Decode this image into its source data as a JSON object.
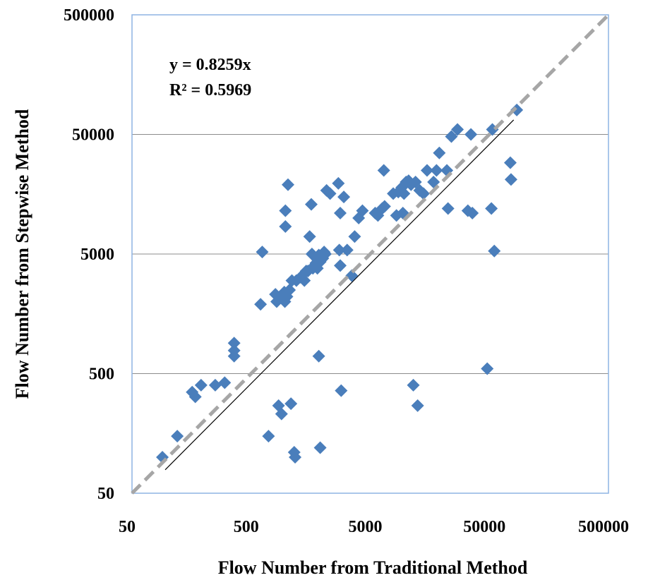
{
  "chart_data": {
    "type": "scatter",
    "xlabel": "Flow Number from Traditional Method",
    "ylabel": "Flow Number from Stepwise Method",
    "x_scale": "log",
    "y_scale": "log",
    "xlim": [
      50,
      500000
    ],
    "ylim": [
      50,
      500000
    ],
    "x_ticks": [
      "50",
      "500",
      "5000",
      "50000",
      "500000"
    ],
    "y_ticks": [
      "50",
      "500",
      "5000",
      "50000",
      "500000"
    ],
    "grid": "horizontal",
    "legend": "none",
    "annotations": [
      "y = 0.8259x",
      "R² = 0.5969"
    ],
    "colors": {
      "points": "#4a7ebb",
      "equality_line": "#a6a6a6",
      "trendline": "#000000",
      "grid": "#8c8c8c",
      "frame": "#8eb4e3"
    },
    "equality_line": {
      "x": [
        50,
        500000
      ],
      "y": [
        50,
        500000
      ],
      "style": "dashed"
    },
    "trendline": {
      "x": [
        95,
        80000
      ],
      "y": [
        78.5,
        66072
      ],
      "slope": 0.8259
    },
    "series": [
      {
        "marker": "diamond",
        "points": [
          [
            90,
            100
          ],
          [
            120,
            150
          ],
          [
            160,
            350
          ],
          [
            170,
            320
          ],
          [
            190,
            400
          ],
          [
            250,
            400
          ],
          [
            300,
            420
          ],
          [
            360,
            900
          ],
          [
            360,
            780
          ],
          [
            360,
            700
          ],
          [
            600,
            1900
          ],
          [
            620,
            5200
          ],
          [
            700,
            150
          ],
          [
            800,
            2300
          ],
          [
            820,
            2000
          ],
          [
            850,
            270
          ],
          [
            870,
            2200
          ],
          [
            900,
            230
          ],
          [
            950,
            2400
          ],
          [
            960,
            2000
          ],
          [
            970,
            8500
          ],
          [
            970,
            11500
          ],
          [
            1000,
            2200
          ],
          [
            1020,
            19000
          ],
          [
            1050,
            2500
          ],
          [
            1080,
            280
          ],
          [
            1100,
            3000
          ],
          [
            1150,
            110
          ],
          [
            1170,
            100
          ],
          [
            1200,
            3000
          ],
          [
            1300,
            3200
          ],
          [
            1400,
            3000
          ],
          [
            1450,
            3600
          ],
          [
            1500,
            3600
          ],
          [
            1550,
            7000
          ],
          [
            1600,
            13000
          ],
          [
            1620,
            5000
          ],
          [
            1650,
            3800
          ],
          [
            1700,
            4000
          ],
          [
            1750,
            4200
          ],
          [
            1800,
            4500
          ],
          [
            1800,
            3800
          ],
          [
            1850,
            700
          ],
          [
            1850,
            4900
          ],
          [
            1900,
            4300
          ],
          [
            1900,
            120
          ],
          [
            1950,
            4500
          ],
          [
            2000,
            4600
          ],
          [
            2050,
            5200
          ],
          [
            2100,
            5000
          ],
          [
            2150,
            17000
          ],
          [
            2300,
            16000
          ],
          [
            2700,
            19500
          ],
          [
            2750,
            5400
          ],
          [
            2800,
            11000
          ],
          [
            2800,
            4000
          ],
          [
            2850,
            360
          ],
          [
            3000,
            15000
          ],
          [
            3200,
            5400
          ],
          [
            3500,
            3300
          ],
          [
            3700,
            7000
          ],
          [
            4000,
            10000
          ],
          [
            4300,
            11500
          ],
          [
            5500,
            11000
          ],
          [
            5800,
            10500
          ],
          [
            6300,
            12000
          ],
          [
            6500,
            25000
          ],
          [
            6600,
            12500
          ],
          [
            7800,
            16000
          ],
          [
            8300,
            10500
          ],
          [
            8600,
            16500
          ],
          [
            9000,
            17000
          ],
          [
            9200,
            18000
          ],
          [
            9400,
            11000
          ],
          [
            9600,
            16000
          ],
          [
            10000,
            20000
          ],
          [
            10500,
            20500
          ],
          [
            11000,
            19000
          ],
          [
            11500,
            400
          ],
          [
            12000,
            20000
          ],
          [
            12500,
            270
          ],
          [
            13000,
            17000
          ],
          [
            14000,
            16000
          ],
          [
            15000,
            25000
          ],
          [
            17000,
            20000
          ],
          [
            18000,
            25000
          ],
          [
            19000,
            35000
          ],
          [
            22000,
            25000
          ],
          [
            22500,
            12000
          ],
          [
            24000,
            48000
          ],
          [
            27000,
            55000
          ],
          [
            33000,
            11500
          ],
          [
            35000,
            50000
          ],
          [
            36000,
            11000
          ],
          [
            48000,
            550
          ],
          [
            52000,
            12000
          ],
          [
            53000,
            55000
          ],
          [
            55000,
            5300
          ],
          [
            75000,
            29000
          ],
          [
            76000,
            21000
          ],
          [
            85000,
            80000
          ]
        ]
      }
    ]
  }
}
